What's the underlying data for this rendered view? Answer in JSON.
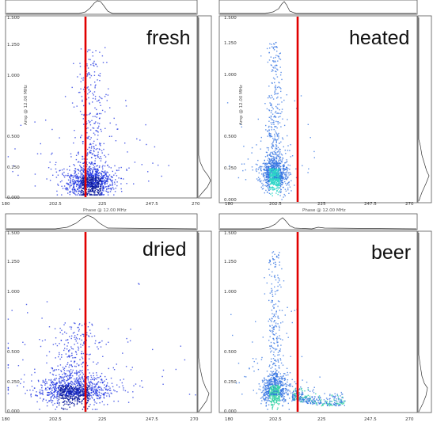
{
  "chart_data": [
    {
      "type": "scatter",
      "panel_label": "fresh",
      "xlabel": "Phase @ 12.00 MHz",
      "ylabel": "Amp @ 12.00 MHz",
      "x_ticks": [
        "180",
        "202.5",
        "225",
        "247.5",
        "270"
      ],
      "y_ticks": [
        "0.000",
        "0.250",
        "0.500",
        "1.000",
        "1.250",
        "1.500"
      ],
      "xlim": [
        180,
        270
      ],
      "ylim": [
        0,
        1.5
      ],
      "threshold_x": 212,
      "cluster": {
        "x_center": 220,
        "x_spread": 6,
        "y_mode": 0.1,
        "tail_to_y": 1.25
      },
      "colors": {
        "points": "#1a2fe0",
        "dense": "#0a1a9c",
        "line": "#e00000"
      }
    },
    {
      "type": "scatter",
      "panel_label": "heated",
      "xlabel": "Phase @ 12.00 MHz",
      "ylabel": "Amp @ 12.00 MHz",
      "x_ticks": [
        "180",
        "202.5",
        "225",
        "247.5",
        "270"
      ],
      "y_ticks": [
        "0.000",
        "0.250",
        "0.500",
        "1.000",
        "1.250",
        "1.500"
      ],
      "xlim": [
        180,
        270
      ],
      "ylim": [
        0,
        1.5
      ],
      "threshold_x": 217,
      "cluster": {
        "x_center": 205,
        "x_spread": 3,
        "y_mode": 0.2,
        "tail_to_y": 1.3
      },
      "colors": {
        "points": "#2d6fe0",
        "dense": "#2ed6c8",
        "line": "#e00000"
      }
    },
    {
      "type": "scatter",
      "panel_label": "dried",
      "xlabel": "Phase @ 12.00 MHz",
      "ylabel": "Amp @ 12.00 MHz",
      "x_ticks": [
        "180",
        "202.5",
        "225",
        "247.5",
        "270"
      ],
      "y_ticks": [
        "0.000",
        "0.250",
        "0.500",
        "1.000",
        "1.250",
        "1.500"
      ],
      "xlim": [
        180,
        270
      ],
      "ylim": [
        0,
        1.5
      ],
      "threshold_x": 212,
      "cluster": {
        "x_center": 212,
        "x_spread": 9,
        "y_mode": 0.15,
        "tail_to_y": 0.75
      },
      "colors": {
        "points": "#1a2fe0",
        "dense": "#0a1a9c",
        "line": "#e00000"
      }
    },
    {
      "type": "scatter",
      "panel_label": "beer",
      "xlabel": "Phase @ 12.00 MHz",
      "ylabel": "Amp @ 12.00 MHz",
      "x_ticks": [
        "180",
        "202.5",
        "225",
        "247.5",
        "270"
      ],
      "y_ticks": [
        "0.000",
        "0.250",
        "0.500",
        "1.000",
        "1.250",
        "1.500"
      ],
      "xlim": [
        180,
        270
      ],
      "ylim": [
        0,
        1.5
      ],
      "threshold_x": 214,
      "cluster": {
        "x_center": 205,
        "x_spread": 3,
        "y_mode": 0.15,
        "tail_to_y": 1.35
      },
      "colors": {
        "points": "#2d6fe0",
        "dense": "#37d4a6",
        "line": "#e00000"
      }
    }
  ]
}
